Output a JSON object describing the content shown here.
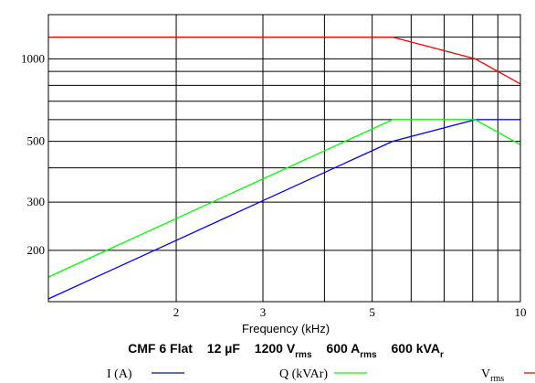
{
  "chart_data": {
    "type": "line",
    "title": {
      "main": "CMF 6 Flat",
      "cap": "12 µF",
      "voltage": "1200 V",
      "voltage_sub": "rms",
      "current": "600 A",
      "current_sub": "rms",
      "power": "600 kVA",
      "power_sub": "r"
    },
    "xlabel": "Frequency (kHz)",
    "ylabel": "",
    "xscale": "log",
    "yscale": "log",
    "xlim": [
      1.1,
      10
    ],
    "ylim": [
      130,
      1450
    ],
    "x_ticks": [
      2,
      3,
      5,
      10
    ],
    "x_ticklabels": [
      "2",
      "3",
      "5",
      "10"
    ],
    "y_ticks": [
      200,
      300,
      500,
      1000
    ],
    "y_ticklabels": [
      "200",
      "300",
      "500",
      "1000"
    ],
    "x_grid": [
      2,
      3,
      4,
      5,
      6,
      7,
      8,
      9
    ],
    "y_grid": [
      200,
      300,
      400,
      500,
      600,
      700,
      800,
      900,
      1000,
      1200
    ],
    "grid": true,
    "legend_position": "bottom",
    "series": [
      {
        "name": "I (A)",
        "color": "#0000ff",
        "x": [
          1.1,
          5.5,
          8.1,
          10
        ],
        "y": [
          133,
          500,
          600,
          600
        ]
      },
      {
        "name": "Q (kVAr)",
        "color": "#00ff00",
        "x": [
          1.1,
          5.5,
          8.1,
          10
        ],
        "y": [
          160,
          600,
          600,
          486
        ]
      },
      {
        "name": "V",
        "name_sub": "rms",
        "color": "#ff0000",
        "x": [
          1.1,
          5.5,
          8.1,
          10
        ],
        "y": [
          1200,
          1200,
          1000,
          810
        ]
      }
    ]
  }
}
